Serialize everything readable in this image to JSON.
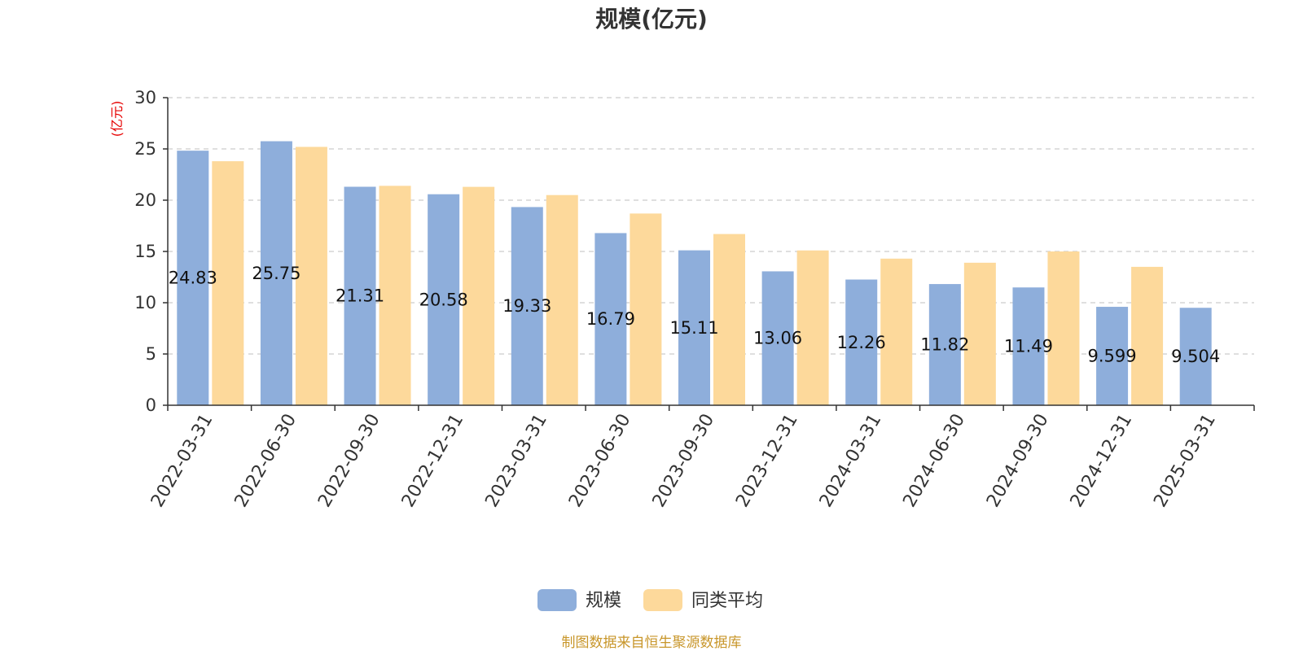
{
  "chart_data": {
    "type": "bar",
    "title": "规模(亿元)",
    "ylabel": "(亿元)",
    "xlabel": "",
    "ylim": [
      0,
      30
    ],
    "yticks": [
      0,
      5,
      10,
      15,
      20,
      25,
      30
    ],
    "grid": true,
    "legend_position": "bottom",
    "categories": [
      "2022-03-31",
      "2022-06-30",
      "2022-09-30",
      "2022-12-31",
      "2023-03-31",
      "2023-06-30",
      "2023-09-30",
      "2023-12-31",
      "2024-03-31",
      "2024-06-30",
      "2024-09-30",
      "2024-12-31",
      "2025-03-31"
    ],
    "series": [
      {
        "name": "规模",
        "color": "#8eaedb",
        "values": [
          24.83,
          25.75,
          21.31,
          20.58,
          19.33,
          16.79,
          15.11,
          13.06,
          12.26,
          11.82,
          11.49,
          9.599,
          9.504
        ],
        "labels": [
          "24.83",
          "25.75",
          "21.31",
          "20.58",
          "19.33",
          "16.79",
          "15.11",
          "13.06",
          "12.26",
          "11.82",
          "11.49",
          "9.599",
          "9.504"
        ]
      },
      {
        "name": "同类平均",
        "color": "#fdd99b",
        "values": [
          23.8,
          25.2,
          21.4,
          21.3,
          20.5,
          18.7,
          16.7,
          15.1,
          14.3,
          13.9,
          15.0,
          13.5,
          null
        ]
      }
    ]
  },
  "source": "制图数据来自恒生聚源数据库"
}
